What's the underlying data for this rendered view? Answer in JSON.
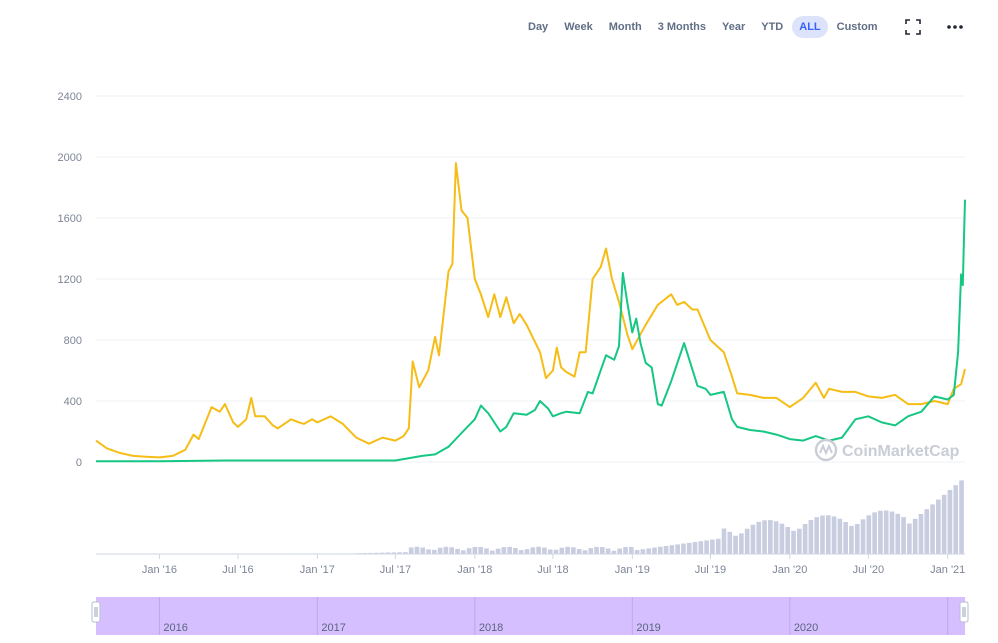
{
  "range_buttons": [
    {
      "label": "Day"
    },
    {
      "label": "Week"
    },
    {
      "label": "Month"
    },
    {
      "label": "3 Months"
    },
    {
      "label": "Year"
    },
    {
      "label": "YTD"
    },
    {
      "label": "ALL",
      "active": true
    },
    {
      "label": "Custom"
    }
  ],
  "icons": {
    "fullscreen": "fullscreen-icon",
    "more": "more-options-icon",
    "watermark_logo": "coinmarketcap-logo-icon"
  },
  "watermark": "CoinMarketCap",
  "colors": {
    "series_gold": "#f5bd16",
    "series_green": "#16c784",
    "volume": "#c8cde0",
    "navigator_fill": "#d6bfff",
    "grid": "#eff2f5",
    "active_button_bg": "#dde3fb",
    "active_button_text": "#3861fb"
  },
  "chart_data": {
    "type": "line",
    "ylim": [
      0,
      2400
    ],
    "yticks": [
      "2400",
      "2000",
      "1600",
      "1200",
      "800",
      "400",
      "0"
    ],
    "ytick_values": [
      2400,
      2000,
      1600,
      1200,
      800,
      400,
      0
    ],
    "xticks": [
      "Jan '16",
      "Jul '16",
      "Jan '17",
      "Jul '17",
      "Jan '18",
      "Jul '18",
      "Jan '19",
      "Jul '19",
      "Jan '20",
      "Jul '20",
      "Jan '21"
    ],
    "xtick_dates": [
      "2016-01-01",
      "2016-07-01",
      "2017-01-01",
      "2017-07-01",
      "2018-01-01",
      "2018-07-01",
      "2019-01-01",
      "2019-07-01",
      "2020-01-01",
      "2020-07-01",
      "2021-01-01"
    ],
    "x_range": [
      "2015-08-07",
      "2021-02-10"
    ],
    "grid": true,
    "series": [
      {
        "color": "#f5bd16",
        "points": [
          [
            "2015-08-07",
            140
          ],
          [
            "2015-09-01",
            90
          ],
          [
            "2015-10-01",
            60
          ],
          [
            "2015-11-01",
            40
          ],
          [
            "2015-12-01",
            35
          ],
          [
            "2016-01-01",
            30
          ],
          [
            "2016-02-01",
            40
          ],
          [
            "2016-03-01",
            80
          ],
          [
            "2016-03-20",
            180
          ],
          [
            "2016-04-01",
            150
          ],
          [
            "2016-05-01",
            360
          ],
          [
            "2016-05-20",
            330
          ],
          [
            "2016-06-01",
            380
          ],
          [
            "2016-06-20",
            260
          ],
          [
            "2016-07-01",
            230
          ],
          [
            "2016-07-20",
            280
          ],
          [
            "2016-08-01",
            420
          ],
          [
            "2016-08-10",
            300
          ],
          [
            "2016-09-01",
            300
          ],
          [
            "2016-09-20",
            240
          ],
          [
            "2016-10-01",
            220
          ],
          [
            "2016-11-01",
            280
          ],
          [
            "2016-11-20",
            260
          ],
          [
            "2016-12-01",
            250
          ],
          [
            "2016-12-20",
            280
          ],
          [
            "2017-01-01",
            260
          ],
          [
            "2017-02-01",
            300
          ],
          [
            "2017-03-01",
            250
          ],
          [
            "2017-04-01",
            160
          ],
          [
            "2017-05-01",
            120
          ],
          [
            "2017-06-01",
            160
          ],
          [
            "2017-07-01",
            140
          ],
          [
            "2017-07-20",
            170
          ],
          [
            "2017-08-01",
            220
          ],
          [
            "2017-08-10",
            660
          ],
          [
            "2017-08-25",
            490
          ],
          [
            "2017-09-15",
            600
          ],
          [
            "2017-10-01",
            820
          ],
          [
            "2017-10-10",
            700
          ],
          [
            "2017-11-01",
            1250
          ],
          [
            "2017-11-10",
            1300
          ],
          [
            "2017-11-18",
            1960
          ],
          [
            "2017-12-01",
            1650
          ],
          [
            "2017-12-15",
            1600
          ],
          [
            "2018-01-01",
            1200
          ],
          [
            "2018-01-15",
            1100
          ],
          [
            "2018-02-01",
            950
          ],
          [
            "2018-02-15",
            1100
          ],
          [
            "2018-03-01",
            950
          ],
          [
            "2018-03-15",
            1080
          ],
          [
            "2018-04-01",
            910
          ],
          [
            "2018-04-15",
            970
          ],
          [
            "2018-05-01",
            900
          ],
          [
            "2018-06-01",
            720
          ],
          [
            "2018-06-15",
            550
          ],
          [
            "2018-07-01",
            600
          ],
          [
            "2018-07-10",
            750
          ],
          [
            "2018-07-20",
            620
          ],
          [
            "2018-08-01",
            590
          ],
          [
            "2018-08-20",
            560
          ],
          [
            "2018-09-01",
            720
          ],
          [
            "2018-09-15",
            720
          ],
          [
            "2018-10-01",
            1200
          ],
          [
            "2018-10-20",
            1280
          ],
          [
            "2018-11-01",
            1400
          ],
          [
            "2018-11-15",
            1200
          ],
          [
            "2018-12-01",
            1050
          ],
          [
            "2018-12-20",
            840
          ],
          [
            "2019-01-01",
            740
          ],
          [
            "2019-02-01",
            900
          ],
          [
            "2019-03-01",
            1030
          ],
          [
            "2019-04-01",
            1100
          ],
          [
            "2019-04-15",
            1030
          ],
          [
            "2019-05-01",
            1050
          ],
          [
            "2019-05-20",
            1000
          ],
          [
            "2019-06-01",
            1000
          ],
          [
            "2019-07-01",
            800
          ],
          [
            "2019-08-01",
            720
          ],
          [
            "2019-08-20",
            560
          ],
          [
            "2019-09-01",
            450
          ],
          [
            "2019-10-01",
            440
          ],
          [
            "2019-11-01",
            420
          ],
          [
            "2019-12-01",
            420
          ],
          [
            "2020-01-01",
            360
          ],
          [
            "2020-02-01",
            420
          ],
          [
            "2020-03-01",
            520
          ],
          [
            "2020-03-20",
            420
          ],
          [
            "2020-04-01",
            480
          ],
          [
            "2020-05-01",
            460
          ],
          [
            "2020-06-01",
            460
          ],
          [
            "2020-07-01",
            430
          ],
          [
            "2020-08-01",
            420
          ],
          [
            "2020-09-01",
            440
          ],
          [
            "2020-10-01",
            380
          ],
          [
            "2020-11-01",
            380
          ],
          [
            "2020-12-01",
            400
          ],
          [
            "2021-01-01",
            380
          ],
          [
            "2021-01-15",
            480
          ],
          [
            "2021-02-01",
            510
          ],
          [
            "2021-02-10",
            610
          ]
        ]
      },
      {
        "color": "#16c784",
        "points": [
          [
            "2015-08-07",
            5
          ],
          [
            "2016-01-01",
            5
          ],
          [
            "2016-06-01",
            10
          ],
          [
            "2017-01-01",
            10
          ],
          [
            "2017-07-01",
            10
          ],
          [
            "2017-09-01",
            40
          ],
          [
            "2017-10-01",
            50
          ],
          [
            "2017-11-01",
            100
          ],
          [
            "2017-12-01",
            190
          ],
          [
            "2018-01-01",
            280
          ],
          [
            "2018-01-15",
            370
          ],
          [
            "2018-02-01",
            320
          ],
          [
            "2018-03-01",
            200
          ],
          [
            "2018-03-15",
            230
          ],
          [
            "2018-04-01",
            320
          ],
          [
            "2018-05-01",
            310
          ],
          [
            "2018-05-20",
            340
          ],
          [
            "2018-06-01",
            400
          ],
          [
            "2018-06-20",
            350
          ],
          [
            "2018-07-01",
            300
          ],
          [
            "2018-07-20",
            320
          ],
          [
            "2018-08-01",
            330
          ],
          [
            "2018-09-01",
            320
          ],
          [
            "2018-09-20",
            460
          ],
          [
            "2018-10-01",
            450
          ],
          [
            "2018-11-01",
            700
          ],
          [
            "2018-11-20",
            670
          ],
          [
            "2018-12-01",
            760
          ],
          [
            "2018-12-10",
            1240
          ],
          [
            "2018-12-20",
            1050
          ],
          [
            "2019-01-01",
            850
          ],
          [
            "2019-01-10",
            940
          ],
          [
            "2019-01-20",
            780
          ],
          [
            "2019-02-01",
            650
          ],
          [
            "2019-02-15",
            620
          ],
          [
            "2019-03-01",
            380
          ],
          [
            "2019-03-10",
            370
          ],
          [
            "2019-04-01",
            530
          ],
          [
            "2019-05-01",
            780
          ],
          [
            "2019-06-01",
            500
          ],
          [
            "2019-06-20",
            480
          ],
          [
            "2019-07-01",
            440
          ],
          [
            "2019-08-01",
            460
          ],
          [
            "2019-08-20",
            280
          ],
          [
            "2019-09-01",
            230
          ],
          [
            "2019-10-01",
            210
          ],
          [
            "2019-11-01",
            200
          ],
          [
            "2019-12-01",
            180
          ],
          [
            "2020-01-01",
            150
          ],
          [
            "2020-02-01",
            140
          ],
          [
            "2020-03-01",
            170
          ],
          [
            "2020-04-01",
            140
          ],
          [
            "2020-05-01",
            160
          ],
          [
            "2020-06-01",
            280
          ],
          [
            "2020-07-01",
            300
          ],
          [
            "2020-08-01",
            260
          ],
          [
            "2020-09-01",
            240
          ],
          [
            "2020-10-01",
            300
          ],
          [
            "2020-11-01",
            330
          ],
          [
            "2020-12-01",
            430
          ],
          [
            "2021-01-01",
            410
          ],
          [
            "2021-01-15",
            440
          ],
          [
            "2021-01-25",
            720
          ],
          [
            "2021-02-01",
            1230
          ],
          [
            "2021-02-05",
            1160
          ],
          [
            "2021-02-08",
            1500
          ],
          [
            "2021-02-10",
            1720
          ]
        ]
      }
    ]
  },
  "navigator": {
    "labels": [
      "2016",
      "2017",
      "2018",
      "2019",
      "2020"
    ]
  }
}
